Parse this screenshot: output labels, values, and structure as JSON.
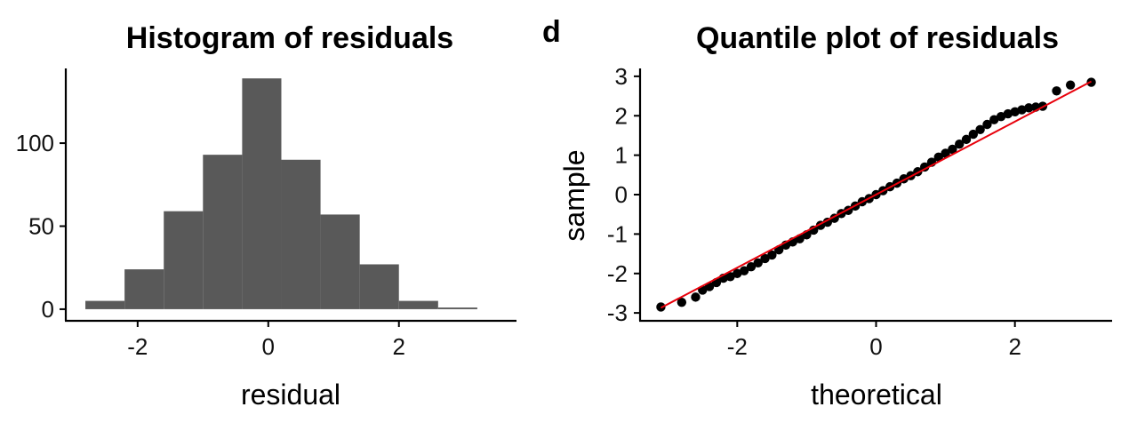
{
  "chart_data": [
    {
      "type": "bar",
      "title": "Histogram of residuals",
      "xlabel": "residual",
      "ylabel": "",
      "xlim": [
        -3.1,
        3.8
      ],
      "ylim": [
        -7,
        145
      ],
      "xticks": [
        -2,
        0,
        2
      ],
      "xtick_labels": [
        "-2",
        "0",
        "2"
      ],
      "yticks": [
        0,
        50,
        100
      ],
      "ytick_labels": [
        "0",
        "50",
        "100"
      ],
      "bar_color": "#595959",
      "bins": [
        {
          "x0": -2.8,
          "x1": -2.2,
          "count": 5
        },
        {
          "x0": -2.2,
          "x1": -1.6,
          "count": 24
        },
        {
          "x0": -1.6,
          "x1": -1.0,
          "count": 59
        },
        {
          "x0": -1.0,
          "x1": -0.4,
          "count": 93
        },
        {
          "x0": -0.4,
          "x1": 0.2,
          "count": 139
        },
        {
          "x0": 0.2,
          "x1": 0.8,
          "count": 90
        },
        {
          "x0": 0.8,
          "x1": 1.4,
          "count": 57
        },
        {
          "x0": 1.4,
          "x1": 2.0,
          "count": 27
        },
        {
          "x0": 2.0,
          "x1": 2.6,
          "count": 5
        },
        {
          "x0": 2.6,
          "x1": 3.2,
          "count": 1
        }
      ],
      "grid": false
    },
    {
      "type": "scatter",
      "panel_tag": "d",
      "title": "Quantile plot of residuals",
      "xlabel": "theoretical",
      "ylabel": "sample",
      "xlim": [
        -3.4,
        3.4
      ],
      "ylim": [
        -3.2,
        3.2
      ],
      "xticks": [
        -2,
        0,
        2
      ],
      "xtick_labels": [
        "-2",
        "0",
        "2"
      ],
      "yticks": [
        -3,
        -2,
        -1,
        0,
        1,
        2,
        3
      ],
      "ytick_labels": [
        "-3",
        "-2",
        "-1",
        "0",
        "1",
        "2",
        "3"
      ],
      "point_color": "#000000",
      "reference_line": {
        "x": [
          -3.1,
          3.1
        ],
        "y": [
          -2.87,
          2.87
        ],
        "color": "#e8000b"
      },
      "points": [
        {
          "x": -3.1,
          "y": -2.85
        },
        {
          "x": -2.8,
          "y": -2.73
        },
        {
          "x": -2.6,
          "y": -2.6
        },
        {
          "x": -2.5,
          "y": -2.42
        },
        {
          "x": -2.4,
          "y": -2.33
        },
        {
          "x": -2.3,
          "y": -2.23
        },
        {
          "x": -2.2,
          "y": -2.12
        },
        {
          "x": -2.1,
          "y": -2.08
        },
        {
          "x": -2.0,
          "y": -2.0
        },
        {
          "x": -1.9,
          "y": -1.93
        },
        {
          "x": -1.8,
          "y": -1.83
        },
        {
          "x": -1.7,
          "y": -1.73
        },
        {
          "x": -1.6,
          "y": -1.62
        },
        {
          "x": -1.5,
          "y": -1.53
        },
        {
          "x": -1.4,
          "y": -1.4
        },
        {
          "x": -1.3,
          "y": -1.28
        },
        {
          "x": -1.2,
          "y": -1.2
        },
        {
          "x": -1.1,
          "y": -1.12
        },
        {
          "x": -1.0,
          "y": -1.02
        },
        {
          "x": -0.9,
          "y": -0.9
        },
        {
          "x": -0.8,
          "y": -0.78
        },
        {
          "x": -0.7,
          "y": -0.7
        },
        {
          "x": -0.6,
          "y": -0.6
        },
        {
          "x": -0.5,
          "y": -0.48
        },
        {
          "x": -0.4,
          "y": -0.4
        },
        {
          "x": -0.3,
          "y": -0.29
        },
        {
          "x": -0.2,
          "y": -0.18
        },
        {
          "x": -0.1,
          "y": -0.1
        },
        {
          "x": 0.0,
          "y": 0.0
        },
        {
          "x": 0.1,
          "y": 0.1
        },
        {
          "x": 0.2,
          "y": 0.2
        },
        {
          "x": 0.3,
          "y": 0.29
        },
        {
          "x": 0.4,
          "y": 0.4
        },
        {
          "x": 0.5,
          "y": 0.48
        },
        {
          "x": 0.6,
          "y": 0.58
        },
        {
          "x": 0.7,
          "y": 0.7
        },
        {
          "x": 0.8,
          "y": 0.82
        },
        {
          "x": 0.9,
          "y": 0.95
        },
        {
          "x": 1.0,
          "y": 1.05
        },
        {
          "x": 1.1,
          "y": 1.15
        },
        {
          "x": 1.2,
          "y": 1.28
        },
        {
          "x": 1.3,
          "y": 1.4
        },
        {
          "x": 1.4,
          "y": 1.53
        },
        {
          "x": 1.5,
          "y": 1.65
        },
        {
          "x": 1.6,
          "y": 1.78
        },
        {
          "x": 1.7,
          "y": 1.9
        },
        {
          "x": 1.8,
          "y": 1.98
        },
        {
          "x": 1.9,
          "y": 2.05
        },
        {
          "x": 2.0,
          "y": 2.1
        },
        {
          "x": 2.1,
          "y": 2.15
        },
        {
          "x": 2.2,
          "y": 2.2
        },
        {
          "x": 2.3,
          "y": 2.22
        },
        {
          "x": 2.4,
          "y": 2.24
        },
        {
          "x": 2.6,
          "y": 2.63
        },
        {
          "x": 2.8,
          "y": 2.78
        },
        {
          "x": 3.1,
          "y": 2.85
        }
      ],
      "grid": false
    }
  ]
}
